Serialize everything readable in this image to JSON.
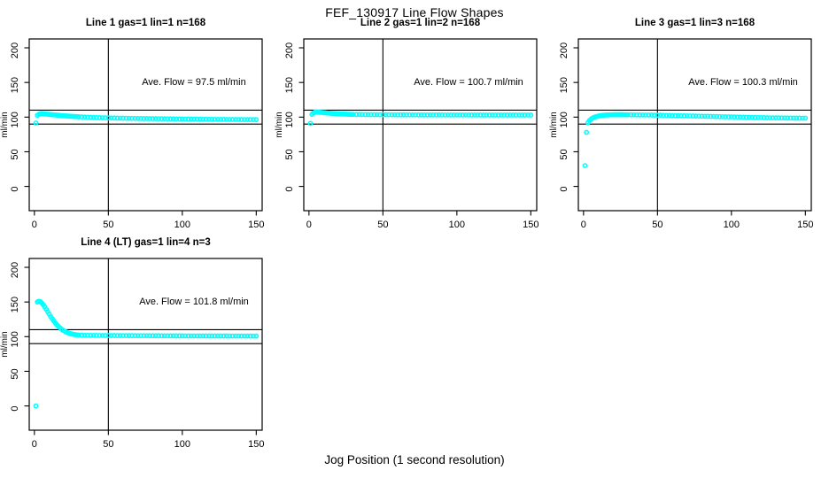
{
  "header": {
    "title": "FEF_130917  Line Flow Shapes"
  },
  "footer": {
    "xlabel": "Jog Position (1 second resolution)"
  },
  "chart_data": {
    "type": "scatter",
    "title": "FEF_130917  Line Flow Shapes",
    "xlabel": "Jog Position (1 second resolution)",
    "ylabel": "ml/min",
    "xlim": [
      0,
      150
    ],
    "ylim": [
      0,
      200
    ],
    "x_ticks": [
      0,
      50,
      100,
      150
    ],
    "y_ticks": [
      0,
      50,
      100,
      150,
      200
    ],
    "hlines": [
      90,
      110
    ],
    "vline_x": 50,
    "point_color": "#00FFFF",
    "grid": false,
    "x": [
      1,
      2,
      3,
      4,
      5,
      6,
      7,
      8,
      9,
      10,
      11,
      12,
      13,
      14,
      15,
      16,
      17,
      18,
      19,
      20,
      21,
      22,
      23,
      24,
      25,
      26,
      27,
      28,
      29,
      30,
      32,
      34,
      36,
      38,
      40,
      42,
      44,
      46,
      48,
      50,
      52,
      54,
      56,
      58,
      60,
      62,
      64,
      66,
      68,
      70,
      72,
      74,
      76,
      78,
      80,
      82,
      84,
      86,
      88,
      90,
      92,
      94,
      96,
      98,
      100,
      102,
      104,
      106,
      108,
      110,
      112,
      114,
      116,
      118,
      120,
      122,
      124,
      126,
      128,
      130,
      132,
      134,
      136,
      138,
      140,
      142,
      144,
      146,
      148,
      150
    ],
    "panels": [
      {
        "title": "Line 1 gas=1 lin=1 n=168",
        "annotation": "Ave. Flow =  97.5  ml/min",
        "ave_flow_ml_min": 97.5,
        "y": [
          91.5,
          102.5,
          104,
          104.8,
          105,
          104.8,
          104.6,
          104.4,
          104.2,
          104,
          103.7,
          103.5,
          103.3,
          103.1,
          102.9,
          102.7,
          102.5,
          102.3,
          102.1,
          102,
          101.8,
          101.6,
          101.5,
          101.3,
          101.2,
          101,
          100.9,
          100.8,
          100.6,
          100.5,
          100.3,
          100.1,
          99.9,
          99.7,
          99.5,
          99.4,
          99.2,
          99.1,
          99,
          98.9,
          98.8,
          98.7,
          98.6,
          98.5,
          98.4,
          98.35,
          98.3,
          98.2,
          98.15,
          98.1,
          98,
          97.95,
          97.9,
          97.85,
          97.8,
          97.75,
          97.7,
          97.65,
          97.6,
          97.55,
          97.5,
          97.45,
          97.4,
          97.35,
          97.3,
          97.25,
          97.2,
          97.15,
          97.1,
          97.05,
          97,
          96.95,
          96.9,
          96.85,
          96.8,
          96.75,
          96.7,
          96.68,
          96.65,
          96.6,
          96.58,
          96.55,
          96.52,
          96.5,
          96.48,
          96.45,
          96.42,
          96.4,
          96.38,
          96.35
        ]
      },
      {
        "title": "Line 2 gas=1 lin=2 n=168",
        "annotation": "Ave. Flow =  100.7  ml/min",
        "ave_flow_ml_min": 100.7,
        "y": [
          91,
          104,
          106,
          107,
          107.2,
          107.1,
          107,
          106.8,
          106.6,
          106.4,
          106.2,
          106,
          105.8,
          105.6,
          105.5,
          105.3,
          105.2,
          105,
          104.9,
          104.8,
          104.7,
          104.6,
          104.5,
          104.4,
          104.3,
          104.2,
          104.1,
          104,
          103.95,
          103.9,
          103.85,
          103.8,
          103.75,
          103.7,
          103.65,
          103.6,
          103.58,
          103.55,
          103.52,
          103.5,
          103.48,
          103.45,
          103.42,
          103.4,
          103.38,
          103.36,
          103.34,
          103.32,
          103.3,
          103.28,
          103.26,
          103.25,
          103.24,
          103.22,
          103.2,
          103.2,
          103.18,
          103.18,
          103.16,
          103.16,
          103.15,
          103.14,
          103.13,
          103.12,
          103.12,
          103.11,
          103.1,
          103.1,
          103.09,
          103.08,
          103.08,
          103.07,
          103.06,
          103.06,
          103.05,
          103.05,
          103.04,
          103.04,
          103.03,
          103.03,
          103.02,
          103.02,
          103.01,
          103.01,
          103,
          103,
          103,
          103,
          103,
          103
        ]
      },
      {
        "title": "Line 3 gas=1 lin=3 n=168",
        "annotation": "Ave. Flow =  100.3  ml/min",
        "ave_flow_ml_min": 100.3,
        "y": [
          30,
          78,
          92,
          95,
          97,
          98.5,
          99.5,
          100.3,
          101,
          101.5,
          102,
          102.3,
          102.6,
          102.8,
          103,
          103.1,
          103.2,
          103.3,
          103.4,
          103.45,
          103.5,
          103.5,
          103.5,
          103.5,
          103.5,
          103.48,
          103.46,
          103.44,
          103.42,
          103.4,
          103.35,
          103.3,
          103.25,
          103.2,
          103.15,
          103.1,
          103.05,
          103,
          102.9,
          102.8,
          102.7,
          102.6,
          102.5,
          102.4,
          102.3,
          102.2,
          102.1,
          102,
          101.9,
          101.8,
          101.7,
          101.6,
          101.5,
          101.4,
          101.3,
          101.2,
          101.1,
          101,
          100.9,
          100.8,
          100.7,
          100.6,
          100.5,
          100.4,
          100.3,
          100.2,
          100.1,
          100,
          99.9,
          99.8,
          99.7,
          99.6,
          99.5,
          99.4,
          99.3,
          99.2,
          99.1,
          99,
          98.95,
          98.9,
          98.85,
          98.8,
          98.75,
          98.7,
          98.65,
          98.6,
          98.58,
          98.55,
          98.52,
          98.5
        ]
      },
      {
        "title": "Line 4 (LT) gas=1 lin=4 n=3",
        "annotation": "Ave. Flow =  101.8  ml/min",
        "ave_flow_ml_min": 101.8,
        "y": [
          0,
          150,
          151,
          150.5,
          148.5,
          146,
          143,
          139.5,
          136,
          132.5,
          129,
          126,
          123,
          120.2,
          117.6,
          115.3,
          113.2,
          111.4,
          109.8,
          108.4,
          107.2,
          106.2,
          105.3,
          104.6,
          104,
          103.5,
          103.1,
          102.8,
          102.5,
          102.3,
          102.1,
          102,
          101.9,
          101.85,
          101.8,
          101.75,
          101.7,
          101.68,
          101.65,
          101.62,
          101.6,
          101.58,
          101.55,
          101.52,
          101.5,
          101.48,
          101.46,
          101.44,
          101.42,
          101.4,
          101.38,
          101.36,
          101.34,
          101.32,
          101.3,
          101.28,
          101.26,
          101.24,
          101.22,
          101.2,
          101.18,
          101.16,
          101.14,
          101.12,
          101.1,
          101.08,
          101.06,
          101.05,
          101.04,
          101.03,
          101.02,
          101.01,
          101,
          101,
          100.98,
          100.97,
          100.96,
          100.95,
          100.94,
          100.93,
          100.92,
          100.91,
          100.9,
          100.89,
          100.88,
          100.87,
          100.86,
          100.85,
          100.84,
          100.83
        ]
      }
    ]
  }
}
